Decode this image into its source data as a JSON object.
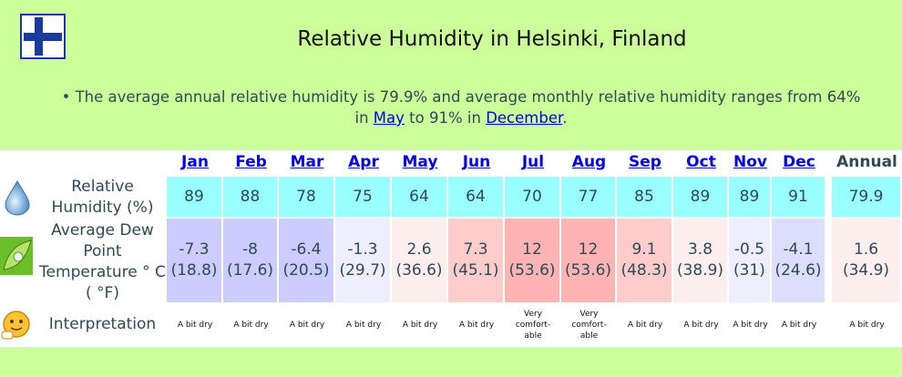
{
  "header": {
    "title": "Relative Humidity in Helsinki, Finland",
    "summary_bullet": "•",
    "summary_part1": "The average annual relative humidity is 79.9% and average monthly relative humidity ranges from 64%",
    "summary_part2_pre": "in ",
    "summary_min_month": "May",
    "summary_mid": " to 91% in ",
    "summary_max_month": "December",
    "summary_end": "."
  },
  "table": {
    "row_labels": {
      "rh": "Relative Humidity (%)",
      "dew": "Average Dew Point Temperature ° C ( °F)",
      "interp": "Interpretation"
    },
    "annual_label": "Annual",
    "months": [
      {
        "name": "Jan",
        "rh": "89",
        "dew_c": "-7.3",
        "dew_f": "(18.8)",
        "interp": "A bit dry",
        "dew_color": "#ccccff"
      },
      {
        "name": "Feb",
        "rh": "88",
        "dew_c": "-8",
        "dew_f": "(17.6)",
        "interp": "A bit dry",
        "dew_color": "#ccccff"
      },
      {
        "name": "Mar",
        "rh": "78",
        "dew_c": "-6.4",
        "dew_f": "(20.5)",
        "interp": "A bit dry",
        "dew_color": "#ccccff"
      },
      {
        "name": "Apr",
        "rh": "75",
        "dew_c": "-1.3",
        "dew_f": "(29.7)",
        "interp": "A bit dry",
        "dew_color": "#eeeeff"
      },
      {
        "name": "May",
        "rh": "64",
        "dew_c": "2.6",
        "dew_f": "(36.6)",
        "interp": "A bit dry",
        "dew_color": "#ffeeee"
      },
      {
        "name": "Jun",
        "rh": "64",
        "dew_c": "7.3",
        "dew_f": "(45.1)",
        "interp": "A bit dry",
        "dew_color": "#ffcccc"
      },
      {
        "name": "Jul",
        "rh": "70",
        "dew_c": "12",
        "dew_f": "(53.6)",
        "interp": "Very comfort-able",
        "dew_color": "#ffb3b3"
      },
      {
        "name": "Aug",
        "rh": "77",
        "dew_c": "12",
        "dew_f": "(53.6)",
        "interp": "Very comfort-able",
        "dew_color": "#ffb3b3"
      },
      {
        "name": "Sep",
        "rh": "85",
        "dew_c": "9.1",
        "dew_f": "(48.3)",
        "interp": "A bit dry",
        "dew_color": "#ffcccc"
      },
      {
        "name": "Oct",
        "rh": "89",
        "dew_c": "3.8",
        "dew_f": "(38.9)",
        "interp": "A bit dry",
        "dew_color": "#ffeeee"
      },
      {
        "name": "Nov",
        "rh": "89",
        "dew_c": "-0.5",
        "dew_f": "(31)",
        "interp": "A bit dry",
        "dew_color": "#eeeeff"
      },
      {
        "name": "Dec",
        "rh": "91",
        "dew_c": "-4.1",
        "dew_f": "(24.6)",
        "interp": "A bit dry",
        "dew_color": "#ddddff"
      }
    ],
    "annual": {
      "rh": "79.9",
      "dew_c": "1.6",
      "dew_f": "(34.9)",
      "interp": "A bit dry",
      "dew_color": "#ffeeee"
    }
  },
  "icons": {
    "flag": "finland-flag-icon",
    "rh": "water-drop-icon",
    "dew": "leaf-dew-icon",
    "interp": "speech-face-icon"
  }
}
